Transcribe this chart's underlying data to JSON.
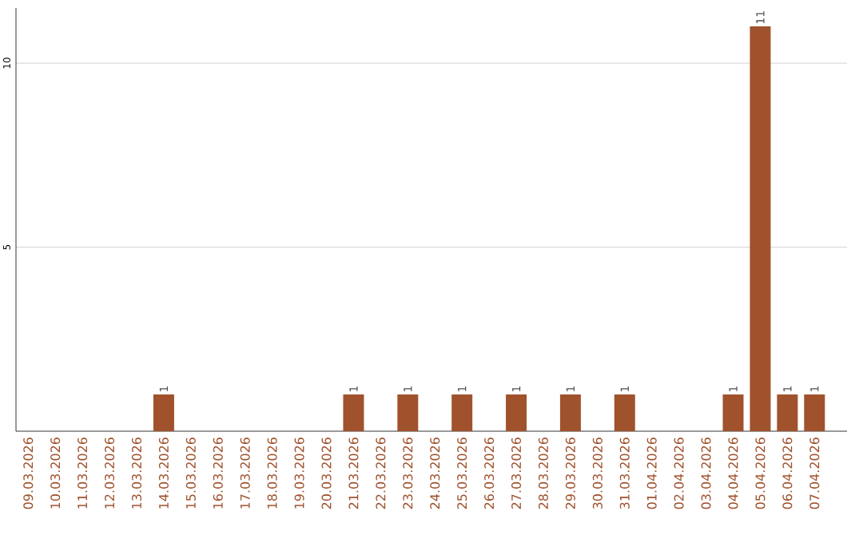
{
  "chart_data": {
    "type": "bar",
    "categories": [
      "09.03.2026",
      "10.03.2026",
      "11.03.2026",
      "12.03.2026",
      "13.03.2026",
      "14.03.2026",
      "15.03.2026",
      "16.03.2026",
      "17.03.2026",
      "18.03.2026",
      "19.03.2026",
      "20.03.2026",
      "21.03.2026",
      "22.03.2026",
      "23.03.2026",
      "24.03.2026",
      "25.03.2026",
      "26.03.2026",
      "27.03.2026",
      "28.03.2026",
      "29.03.2026",
      "30.03.2026",
      "31.03.2026",
      "01.04.2026",
      "02.04.2026",
      "03.04.2026",
      "04.04.2026",
      "05.04.2026",
      "06.04.2026",
      "07.04.2026"
    ],
    "values": [
      0,
      0,
      0,
      0,
      0,
      1,
      0,
      0,
      0,
      0,
      0,
      0,
      1,
      0,
      1,
      0,
      1,
      0,
      1,
      0,
      1,
      0,
      1,
      0,
      0,
      0,
      1,
      11,
      1,
      1
    ],
    "value_labels": [
      null,
      null,
      null,
      null,
      null,
      "1",
      null,
      null,
      null,
      null,
      null,
      null,
      "1",
      null,
      "1",
      null,
      "1",
      null,
      "1",
      null,
      "1",
      null,
      "1",
      null,
      null,
      null,
      "1",
      "11",
      "1",
      "1"
    ],
    "color": "#a0522d",
    "ylim": [
      0,
      11.5
    ],
    "yticks": [
      5,
      10
    ],
    "grid": "y"
  }
}
